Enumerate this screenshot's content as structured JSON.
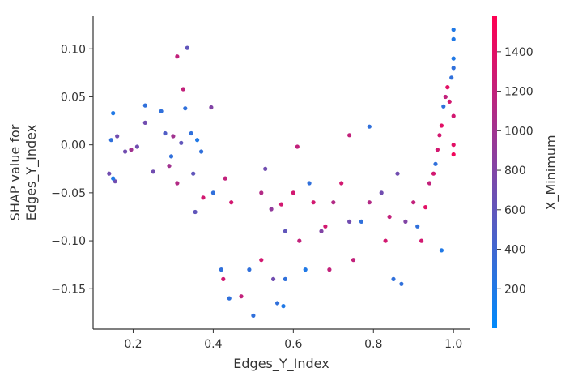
{
  "chart_data": {
    "type": "scatter",
    "title": "",
    "xlabel": "Edges_Y_Index",
    "ylabel_lines": [
      "SHAP value for",
      "Edges_Y_Index"
    ],
    "xlim": [
      0.1,
      1.04
    ],
    "ylim": [
      -0.192,
      0.134
    ],
    "xticks": [
      0.2,
      0.4,
      0.6,
      0.8,
      1.0
    ],
    "xtick_labels": [
      "0.2",
      "0.4",
      "0.6",
      "0.8",
      "1.0"
    ],
    "yticks": [
      0.1,
      0.05,
      0.0,
      -0.05,
      -0.1,
      -0.15
    ],
    "ytick_labels": [
      "0.10",
      "0.05",
      "0.00",
      "−0.05",
      "−0.10",
      "−0.15"
    ],
    "colorbar": {
      "label": "X_Minimum",
      "range": [
        0,
        1580
      ],
      "ticks": [
        200,
        400,
        600,
        800,
        1000,
        1200,
        1400
      ],
      "tick_labels": [
        "200",
        "400",
        "600",
        "800",
        "1000",
        "1200",
        "1400"
      ],
      "colors": [
        "#008afb",
        "#ff0052"
      ]
    },
    "points": [
      [
        0.15,
        0.033,
        200
      ],
      [
        0.145,
        0.005,
        300
      ],
      [
        0.16,
        0.009,
        700
      ],
      [
        0.14,
        -0.03,
        700
      ],
      [
        0.155,
        -0.038,
        700
      ],
      [
        0.15,
        -0.035,
        200
      ],
      [
        0.18,
        -0.007,
        700
      ],
      [
        0.195,
        -0.005,
        1000
      ],
      [
        0.21,
        -0.002,
        700
      ],
      [
        0.23,
        0.023,
        700
      ],
      [
        0.23,
        0.041,
        300
      ],
      [
        0.25,
        -0.028,
        700
      ],
      [
        0.27,
        0.035,
        300
      ],
      [
        0.28,
        0.012,
        500
      ],
      [
        0.31,
        0.092,
        1200
      ],
      [
        0.335,
        0.101,
        600
      ],
      [
        0.325,
        0.058,
        1200
      ],
      [
        0.33,
        0.038,
        300
      ],
      [
        0.395,
        0.039,
        800
      ],
      [
        0.3,
        0.009,
        1000
      ],
      [
        0.32,
        0.002,
        600
      ],
      [
        0.29,
        -0.022,
        1000
      ],
      [
        0.31,
        -0.04,
        1100
      ],
      [
        0.295,
        -0.012,
        300
      ],
      [
        0.345,
        0.012,
        300
      ],
      [
        0.36,
        0.005,
        200
      ],
      [
        0.37,
        -0.007,
        300
      ],
      [
        0.35,
        -0.03,
        600
      ],
      [
        0.355,
        -0.07,
        600
      ],
      [
        0.375,
        -0.055,
        1300
      ],
      [
        0.43,
        -0.035,
        1200
      ],
      [
        0.4,
        -0.05,
        300
      ],
      [
        0.445,
        -0.06,
        1300
      ],
      [
        0.42,
        -0.13,
        300
      ],
      [
        0.425,
        -0.14,
        1300
      ],
      [
        0.44,
        -0.16,
        300
      ],
      [
        0.47,
        -0.158,
        1200
      ],
      [
        0.5,
        -0.178,
        300
      ],
      [
        0.49,
        -0.13,
        300
      ],
      [
        0.52,
        -0.12,
        1300
      ],
      [
        0.55,
        -0.14,
        700
      ],
      [
        0.56,
        -0.165,
        300
      ],
      [
        0.575,
        -0.168,
        200
      ],
      [
        0.58,
        -0.14,
        300
      ],
      [
        0.52,
        -0.05,
        1100
      ],
      [
        0.53,
        -0.025,
        700
      ],
      [
        0.545,
        -0.067,
        900
      ],
      [
        0.57,
        -0.062,
        1300
      ],
      [
        0.6,
        -0.05,
        1300
      ],
      [
        0.615,
        -0.1,
        1200
      ],
      [
        0.58,
        -0.09,
        600
      ],
      [
        0.64,
        -0.04,
        300
      ],
      [
        0.65,
        -0.06,
        1300
      ],
      [
        0.67,
        -0.09,
        800
      ],
      [
        0.68,
        -0.085,
        1300
      ],
      [
        0.7,
        -0.06,
        1100
      ],
      [
        0.72,
        -0.04,
        1300
      ],
      [
        0.74,
        -0.08,
        700
      ],
      [
        0.75,
        -0.12,
        1200
      ],
      [
        0.77,
        -0.08,
        300
      ],
      [
        0.79,
        -0.06,
        1100
      ],
      [
        0.82,
        -0.05,
        700
      ],
      [
        0.83,
        -0.1,
        1300
      ],
      [
        0.84,
        -0.075,
        1200
      ],
      [
        0.86,
        -0.03,
        700
      ],
      [
        0.88,
        -0.08,
        800
      ],
      [
        0.9,
        -0.06,
        1200
      ],
      [
        0.91,
        -0.085,
        300
      ],
      [
        0.92,
        -0.1,
        1300
      ],
      [
        0.93,
        -0.065,
        1400
      ],
      [
        0.94,
        -0.04,
        1200
      ],
      [
        0.95,
        -0.03,
        1300
      ],
      [
        0.955,
        -0.02,
        300
      ],
      [
        0.96,
        -0.005,
        1300
      ],
      [
        0.965,
        0.01,
        1300
      ],
      [
        0.97,
        0.02,
        1400
      ],
      [
        0.975,
        0.04,
        300
      ],
      [
        0.98,
        0.05,
        1200
      ],
      [
        0.985,
        0.06,
        1400
      ],
      [
        0.99,
        0.045,
        1300
      ],
      [
        0.995,
        0.07,
        300
      ],
      [
        1.0,
        0.09,
        200
      ],
      [
        1.0,
        0.11,
        200
      ],
      [
        1.0,
        0.12,
        200
      ],
      [
        1.0,
        0.08,
        300
      ],
      [
        1.0,
        0.03,
        1300
      ],
      [
        1.0,
        0.0,
        1400
      ],
      [
        1.0,
        -0.01,
        1500
      ],
      [
        0.79,
        0.019,
        300
      ],
      [
        0.74,
        0.01,
        1200
      ],
      [
        0.85,
        -0.14,
        300
      ],
      [
        0.87,
        -0.145,
        300
      ],
      [
        0.63,
        -0.13,
        200
      ],
      [
        0.69,
        -0.13,
        1200
      ],
      [
        0.97,
        -0.11,
        200
      ],
      [
        0.61,
        -0.002,
        1200
      ]
    ]
  }
}
